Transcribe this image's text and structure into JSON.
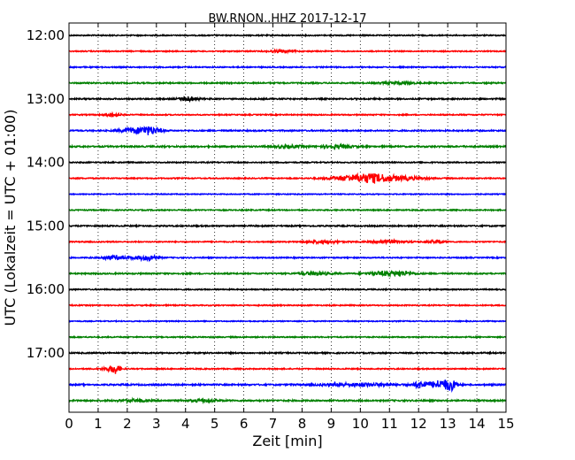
{
  "chart_data": {
    "type": "line",
    "title": "BW.RNON..HHZ 2017-12-17",
    "xlabel": "Zeit  [min]",
    "ylabel": "UTC (Lokalzeit = UTC + 01:00)",
    "xlim": [
      0,
      15
    ],
    "x_ticks": [
      "0",
      "1",
      "2",
      "3",
      "4",
      "5",
      "6",
      "7",
      "8",
      "9",
      "10",
      "11",
      "12",
      "13",
      "14",
      "15"
    ],
    "y_ticks": [
      {
        "label": "12:00",
        "trace": 0
      },
      {
        "label": "13:00",
        "trace": 4
      },
      {
        "label": "14:00",
        "trace": 8
      },
      {
        "label": "15:00",
        "trace": 12
      },
      {
        "label": "16:00",
        "trace": 16
      },
      {
        "label": "17:00",
        "trace": 20
      }
    ],
    "grid": "vertical-dotted",
    "trace_interval_min": 15,
    "colors": [
      "#000000",
      "#ff0000",
      "#0000ff",
      "#008000"
    ],
    "traces": [
      {
        "start": "12:00",
        "noise": 0.6,
        "events": []
      },
      {
        "start": "12:15",
        "noise": 0.6,
        "events": [
          {
            "t": 7.3,
            "amp": 1.2,
            "dur": 0.4
          }
        ]
      },
      {
        "start": "12:30",
        "noise": 0.6,
        "events": []
      },
      {
        "start": "12:45",
        "noise": 0.7,
        "events": [
          {
            "t": 11.3,
            "amp": 1.2,
            "dur": 0.5
          }
        ]
      },
      {
        "start": "13:00",
        "noise": 0.7,
        "events": [
          {
            "t": 4.1,
            "amp": 2.5,
            "dur": 0.3
          }
        ]
      },
      {
        "start": "13:15",
        "noise": 0.6,
        "events": [
          {
            "t": 1.5,
            "amp": 2.2,
            "dur": 0.25
          }
        ]
      },
      {
        "start": "13:30",
        "noise": 0.7,
        "events": [
          {
            "t": 2.3,
            "amp": 2.6,
            "dur": 0.5
          },
          {
            "t": 2.8,
            "amp": 3.5,
            "dur": 0.35
          }
        ]
      },
      {
        "start": "13:45",
        "noise": 0.8,
        "events": [
          {
            "t": 7.5,
            "amp": 1.4,
            "dur": 0.5
          },
          {
            "t": 9.2,
            "amp": 1.6,
            "dur": 0.5
          }
        ]
      },
      {
        "start": "14:00",
        "noise": 0.6,
        "events": []
      },
      {
        "start": "14:15",
        "noise": 0.6,
        "events": [
          {
            "t": 9.7,
            "amp": 2.5,
            "dur": 0.8
          },
          {
            "t": 10.4,
            "amp": 3.3,
            "dur": 0.6
          },
          {
            "t": 11.3,
            "amp": 2.2,
            "dur": 0.8
          }
        ]
      },
      {
        "start": "14:30",
        "noise": 0.5,
        "events": []
      },
      {
        "start": "14:45",
        "noise": 0.6,
        "events": []
      },
      {
        "start": "15:00",
        "noise": 0.7,
        "events": []
      },
      {
        "start": "15:15",
        "noise": 0.6,
        "events": [
          {
            "t": 8.7,
            "amp": 1.4,
            "dur": 0.6
          },
          {
            "t": 11.0,
            "amp": 1.4,
            "dur": 0.6
          },
          {
            "t": 12.6,
            "amp": 1.5,
            "dur": 0.3
          }
        ]
      },
      {
        "start": "15:30",
        "noise": 0.6,
        "events": [
          {
            "t": 1.5,
            "amp": 2.0,
            "dur": 0.4
          },
          {
            "t": 2.5,
            "amp": 2.0,
            "dur": 0.4
          },
          {
            "t": 2.9,
            "amp": 2.0,
            "dur": 0.2
          }
        ]
      },
      {
        "start": "15:45",
        "noise": 0.7,
        "events": [
          {
            "t": 8.5,
            "amp": 1.6,
            "dur": 0.5
          },
          {
            "t": 10.7,
            "amp": 1.8,
            "dur": 0.5
          },
          {
            "t": 11.4,
            "amp": 2.2,
            "dur": 0.4
          }
        ]
      },
      {
        "start": "16:00",
        "noise": 0.6,
        "events": []
      },
      {
        "start": "16:15",
        "noise": 0.6,
        "events": []
      },
      {
        "start": "16:30",
        "noise": 0.5,
        "events": []
      },
      {
        "start": "16:45",
        "noise": 0.6,
        "events": []
      },
      {
        "start": "17:00",
        "noise": 0.7,
        "events": []
      },
      {
        "start": "17:15",
        "noise": 0.6,
        "events": [
          {
            "t": 1.4,
            "amp": 2.0,
            "dur": 0.3
          },
          {
            "t": 1.6,
            "amp": 4.0,
            "dur": 0.15
          }
        ]
      },
      {
        "start": "17:30",
        "noise": 0.8,
        "events": [
          {
            "t": 10.0,
            "amp": 1.5,
            "dur": 1.2
          },
          {
            "t": 12.1,
            "amp": 3.5,
            "dur": 0.25
          },
          {
            "t": 12.7,
            "amp": 4.5,
            "dur": 0.3
          },
          {
            "t": 13.1,
            "amp": 5.5,
            "dur": 0.2
          }
        ]
      },
      {
        "start": "17:45",
        "noise": 0.8,
        "events": [
          {
            "t": 2.2,
            "amp": 1.2,
            "dur": 0.5
          },
          {
            "t": 4.6,
            "amp": 1.2,
            "dur": 0.5
          }
        ]
      }
    ]
  }
}
